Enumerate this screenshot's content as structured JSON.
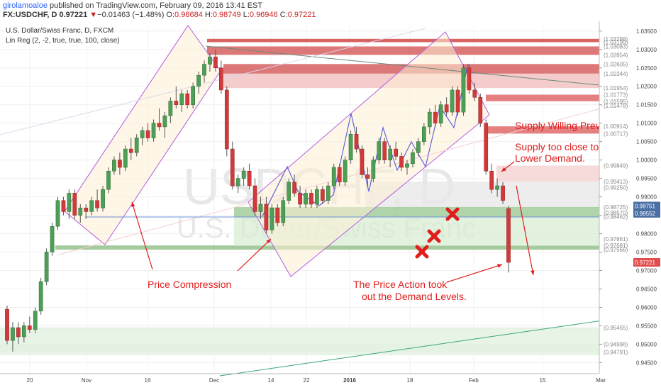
{
  "header": {
    "author": "girolamoaloe",
    "published": "published on TradingView.com, February 09, 2016 13:41 EST",
    "symbol": "FX:USDCHF, D",
    "last": "0.97221",
    "change_arrow": "▼",
    "change": "−0.01463 (−1.48%)",
    "o_label": "O:",
    "o_value": "0.98684",
    "h_label": "H:",
    "h_value": "0.98749",
    "l_label": "L:",
    "l_value": "0.96946",
    "c_label": "C:",
    "c_value": "0.97221"
  },
  "chart_data": {
    "type": "candlestick",
    "title": "U.S. Dollar/Swiss Franc, D, FXCM",
    "indicator": "Lin Reg (2, -2, true, true, 100, close)",
    "watermark_symbol": "USDCHF, D",
    "watermark_name": "U.S. Dollar/Swiss Franc",
    "x_tick_labels": [
      "20",
      "Nov",
      "16",
      "Dec",
      "14",
      "22",
      "2016",
      "18",
      "Feb",
      "15",
      "Mar"
    ],
    "y_range": [
      0.942,
      1.0365
    ],
    "y_tick_labels": [
      "1.03500",
      "1.03000",
      "1.02500",
      "1.02000",
      "1.01500",
      "1.01000",
      "1.00500",
      "1.00000",
      "0.99500",
      "0.99000",
      "0.98500",
      "0.98000",
      "0.97500",
      "0.97000",
      "0.96500",
      "0.96000",
      "0.95500",
      "0.95000",
      "0.94500"
    ],
    "level_labels": [
      "1.03288",
      "1.03199",
      "1.03083",
      "1.02854",
      "1.02605",
      "1.02344",
      "1.01954",
      "1.01773",
      "1.01595",
      "1.01478",
      "1.00914",
      "1.00717",
      "0.99849",
      "0.99413",
      "0.99250",
      "0.98725",
      "0.98570",
      "0.98462",
      "0.97861",
      "0.97681",
      "0.97566",
      "0.95455",
      "0.94996",
      "0.94791"
    ],
    "price_badges": [
      {
        "label": "0.98751",
        "color": "#4a6fa5"
      },
      {
        "label": "0.98552",
        "color": "#4a6fa5"
      },
      {
        "label": "0.97221",
        "color": "#e24c4c"
      }
    ],
    "supply_zones": [
      [
        1.03199,
        1.03288
      ],
      [
        1.02854,
        1.03083
      ],
      [
        1.02344,
        1.02605
      ],
      [
        1.01954,
        1.02344
      ],
      [
        1.01595,
        1.01773
      ],
      [
        1.00717,
        1.00914
      ],
      [
        0.99413,
        0.99849
      ]
    ],
    "demand_zones": [
      [
        0.98462,
        0.98725
      ],
      [
        0.97566,
        0.97681
      ],
      [
        0.94791,
        0.94996
      ],
      [
        0.95455,
        0.95455
      ]
    ],
    "annotations": [
      "Price Compression",
      "The Price Action took",
      "out the Demand Levels.",
      "Supply Willing Prevailed.",
      "Supply too close to the",
      "Lower Demand."
    ],
    "candles": [
      [
        0.9595,
        0.9605,
        0.95,
        0.951
      ],
      [
        0.951,
        0.956,
        0.948,
        0.9545
      ],
      [
        0.9545,
        0.956,
        0.95,
        0.952
      ],
      [
        0.952,
        0.956,
        0.9505,
        0.955
      ],
      [
        0.955,
        0.9575,
        0.953,
        0.954
      ],
      [
        0.954,
        0.96,
        0.953,
        0.959
      ],
      [
        0.959,
        0.968,
        0.958,
        0.967
      ],
      [
        0.967,
        0.976,
        0.966,
        0.975
      ],
      [
        0.975,
        0.983,
        0.974,
        0.982
      ],
      [
        0.982,
        0.99,
        0.981,
        0.989
      ],
      [
        0.989,
        0.99,
        0.985,
        0.986
      ],
      [
        0.986,
        0.992,
        0.984,
        0.991
      ],
      [
        0.991,
        0.992,
        0.984,
        0.985
      ],
      [
        0.985,
        0.988,
        0.983,
        0.987
      ],
      [
        0.987,
        0.988,
        0.984,
        0.986
      ],
      [
        0.986,
        0.99,
        0.985,
        0.989
      ],
      [
        0.989,
        0.992,
        0.986,
        0.987
      ],
      [
        0.987,
        0.993,
        0.986,
        0.992
      ],
      [
        0.992,
        0.998,
        0.991,
        0.997
      ],
      [
        0.997,
        1.001,
        0.996,
        1.0
      ],
      [
        1.0,
        1.002,
        0.996,
        0.998
      ],
      [
        0.998,
        1.004,
        0.997,
        1.003
      ],
      [
        1.003,
        1.006,
        1.0,
        1.002
      ],
      [
        1.002,
        1.007,
        1.001,
        1.006
      ],
      [
        1.006,
        1.009,
        1.004,
        1.008
      ],
      [
        1.008,
        1.01,
        1.005,
        1.006
      ],
      [
        1.006,
        1.011,
        1.005,
        1.01
      ],
      [
        1.01,
        1.014,
        1.008,
        1.009
      ],
      [
        1.009,
        1.013,
        1.006,
        1.012
      ],
      [
        1.012,
        1.017,
        1.01,
        1.016
      ],
      [
        1.016,
        1.02,
        1.014,
        1.015
      ],
      [
        1.015,
        1.019,
        1.013,
        1.018
      ],
      [
        1.018,
        1.019,
        1.014,
        1.015
      ],
      [
        1.015,
        1.021,
        1.014,
        1.02
      ],
      [
        1.02,
        1.024,
        1.018,
        1.023
      ],
      [
        1.023,
        1.027,
        1.021,
        1.026
      ],
      [
        1.026,
        1.029,
        1.024,
        1.028
      ],
      [
        1.028,
        1.03,
        1.024,
        1.025
      ],
      [
        1.025,
        1.027,
        1.018,
        1.019
      ],
      [
        1.019,
        1.02,
        1.001,
        1.003
      ],
      [
        1.003,
        1.005,
        0.992,
        0.993
      ],
      [
        0.993,
        0.996,
        0.991,
        0.995
      ],
      [
        0.995,
        0.998,
        0.993,
        0.997
      ],
      [
        0.997,
        0.999,
        0.992,
        0.993
      ],
      [
        0.993,
        0.995,
        0.985,
        0.986
      ],
      [
        0.986,
        0.99,
        0.984,
        0.988
      ],
      [
        0.988,
        0.99,
        0.98,
        0.981
      ],
      [
        0.981,
        0.988,
        0.98,
        0.987
      ],
      [
        0.987,
        0.988,
        0.982,
        0.983
      ],
      [
        0.983,
        0.99,
        0.982,
        0.989
      ],
      [
        0.989,
        0.995,
        0.988,
        0.994
      ],
      [
        0.994,
        0.996,
        0.99,
        0.991
      ],
      [
        0.991,
        0.993,
        0.987,
        0.988
      ],
      [
        0.988,
        0.992,
        0.987,
        0.991
      ],
      [
        0.991,
        0.992,
        0.987,
        0.988
      ],
      [
        0.988,
        0.993,
        0.987,
        0.992
      ],
      [
        0.992,
        0.993,
        0.988,
        0.989
      ],
      [
        0.989,
        0.994,
        0.988,
        0.993
      ],
      [
        0.993,
        0.999,
        0.992,
        0.998
      ],
      [
        0.998,
        0.999,
        0.993,
        0.994
      ],
      [
        0.994,
        1.001,
        0.993,
        1.0
      ],
      [
        1.0,
        1.008,
        0.999,
        1.007
      ],
      [
        1.007,
        1.009,
        1.002,
        1.003
      ],
      [
        1.003,
        1.004,
        0.995,
        0.996
      ],
      [
        0.996,
        0.998,
        0.993,
        0.995
      ],
      [
        0.995,
        1.001,
        0.994,
        1.0
      ],
      [
        1.0,
        1.006,
        0.999,
        1.005
      ],
      [
        1.005,
        1.006,
        0.999,
        1.0
      ],
      [
        1.0,
        1.004,
        0.998,
        1.003
      ],
      [
        1.003,
        1.005,
        1.0,
        1.001
      ],
      [
        1.001,
        1.002,
        0.997,
        0.998
      ],
      [
        0.998,
        1.0,
        0.996,
        0.999
      ],
      [
        0.999,
        1.003,
        0.998,
        1.002
      ],
      [
        1.002,
        1.006,
        1.001,
        1.005
      ],
      [
        1.005,
        1.01,
        1.004,
        1.009
      ],
      [
        1.009,
        1.014,
        1.007,
        1.013
      ],
      [
        1.013,
        1.015,
        1.009,
        1.01
      ],
      [
        1.01,
        1.016,
        1.009,
        1.015
      ],
      [
        1.015,
        1.017,
        1.012,
        1.013
      ],
      [
        1.013,
        1.02,
        1.012,
        1.019
      ],
      [
        1.019,
        1.02,
        1.012,
        1.013
      ],
      [
        1.013,
        1.026,
        1.012,
        1.025
      ],
      [
        1.025,
        1.026,
        1.018,
        1.019
      ],
      [
        1.019,
        1.021,
        1.016,
        1.017
      ],
      [
        1.017,
        1.018,
        1.009,
        1.01
      ],
      [
        1.01,
        1.011,
        0.996,
        0.997
      ],
      [
        0.997,
        0.999,
        0.991,
        0.992
      ],
      [
        0.992,
        0.995,
        0.99,
        0.993
      ],
      [
        0.993,
        0.994,
        0.988,
        0.989
      ],
      [
        0.98684,
        0.98749,
        0.96946,
        0.97221
      ]
    ]
  }
}
